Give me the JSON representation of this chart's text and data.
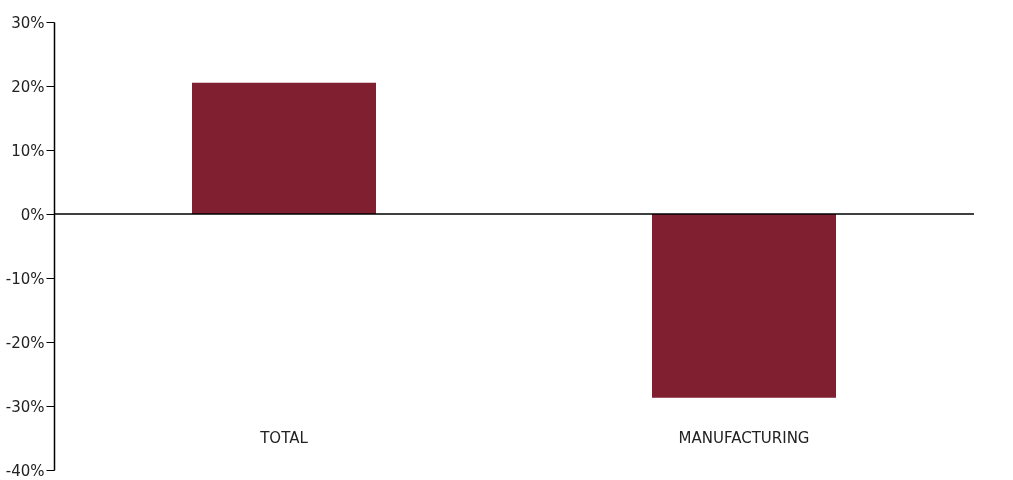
{
  "chart_data": {
    "type": "bar",
    "categories": [
      "TOTAL",
      "MANUFACTURING"
    ],
    "values": [
      20.5,
      -28.7
    ],
    "color": "#7f1f2f",
    "ylim": [
      -40,
      30
    ],
    "yticks": [
      {
        "value": 30,
        "label": "30%"
      },
      {
        "value": 20,
        "label": "20%"
      },
      {
        "value": 10,
        "label": "10%"
      },
      {
        "value": 0,
        "label": "0%"
      },
      {
        "value": -10,
        "label": "-10%"
      },
      {
        "value": -20,
        "label": "-20%"
      },
      {
        "value": -30,
        "label": "-30%"
      },
      {
        "value": -40,
        "label": "-40%"
      }
    ],
    "data_labels": false
  }
}
